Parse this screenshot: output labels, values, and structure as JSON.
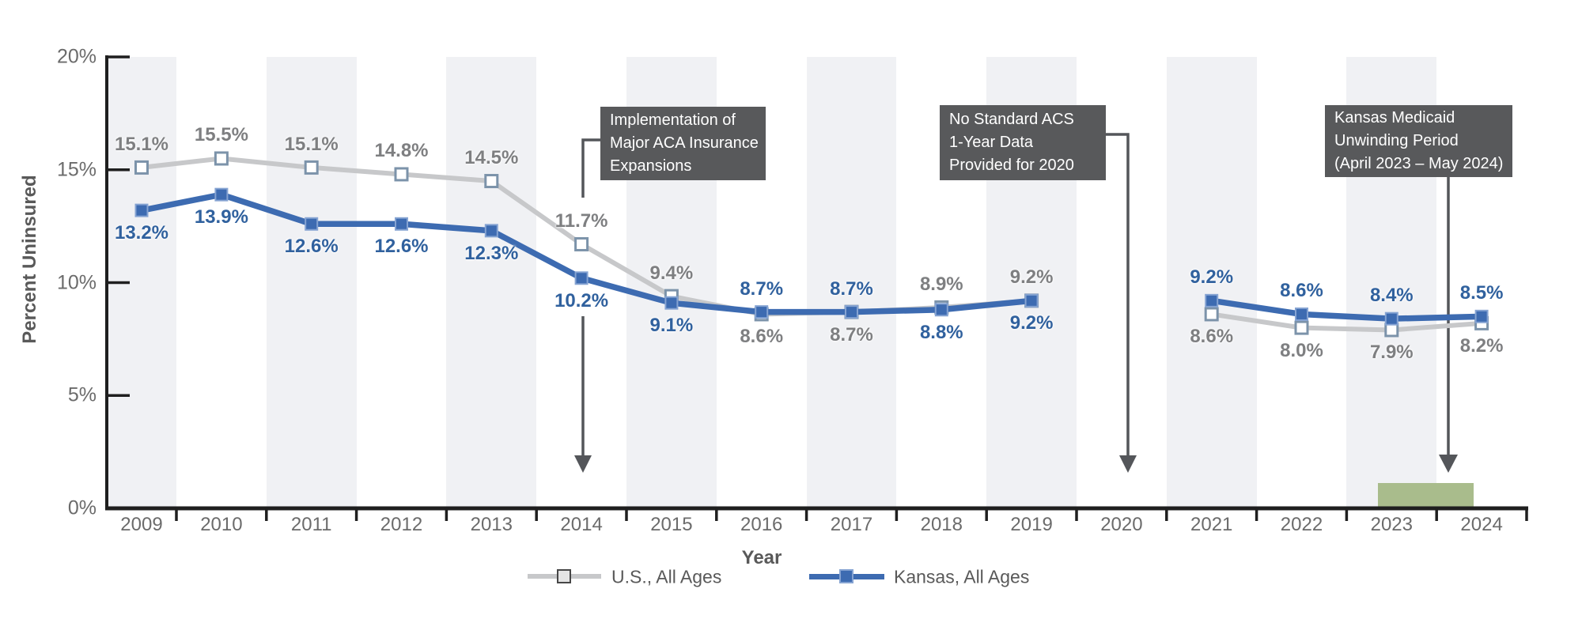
{
  "chart_data": {
    "type": "line",
    "title": "",
    "xlabel": "Year",
    "ylabel": "Percent Uninsured",
    "ylim": [
      0,
      20
    ],
    "ytick_values": [
      0,
      5,
      10,
      15,
      20
    ],
    "ytick_labels": [
      "0%",
      "5%",
      "10%",
      "15%",
      "20%"
    ],
    "grid": "off",
    "legend_position": "bottom",
    "categories": [
      "2009",
      "2010",
      "2011",
      "2012",
      "2013",
      "2014",
      "2015",
      "2016",
      "2017",
      "2018",
      "2019",
      "2020",
      "2021",
      "2022",
      "2023",
      "2024"
    ],
    "series": [
      {
        "name": "U.S., All Ages",
        "key": "us",
        "values": [
          15.1,
          15.5,
          15.1,
          14.8,
          14.5,
          11.7,
          9.4,
          8.6,
          8.7,
          8.9,
          9.2,
          null,
          8.6,
          8.0,
          7.9,
          8.2
        ],
        "labels": [
          "15.1%",
          "15.5%",
          "15.1%",
          "14.8%",
          "14.5%",
          "11.7%",
          "9.4%",
          "8.6%",
          "8.7%",
          "8.9%",
          "9.2%",
          null,
          "8.6%",
          "8.0%",
          "7.9%",
          "8.2%"
        ],
        "label_side": [
          "above",
          "above",
          "above",
          "above",
          "above",
          "above",
          "above",
          "below",
          "below",
          "above",
          "above",
          null,
          "below",
          "below",
          "below",
          "below"
        ]
      },
      {
        "name": "Kansas, All Ages",
        "key": "kansas",
        "values": [
          13.2,
          13.9,
          12.6,
          12.6,
          12.3,
          10.2,
          9.1,
          8.7,
          8.7,
          8.8,
          9.2,
          null,
          9.2,
          8.6,
          8.4,
          8.5
        ],
        "labels": [
          "13.2%",
          "13.9%",
          "12.6%",
          "12.6%",
          "12.3%",
          "10.2%",
          "9.1%",
          "8.7%",
          "8.7%",
          "8.8%",
          "9.2%",
          null,
          "9.2%",
          "8.6%",
          "8.4%",
          "8.5%"
        ],
        "label_side": [
          "below",
          "below",
          "below",
          "below",
          "below",
          "below",
          "below",
          "above",
          "above",
          "below",
          "below",
          null,
          "above",
          "above",
          "above",
          "above"
        ]
      }
    ],
    "shaded_years": [
      "2009",
      "2011",
      "2013",
      "2015",
      "2017",
      "2019",
      "2021",
      "2023"
    ],
    "missing_year": "2020"
  },
  "annotations": [
    {
      "id": "aca",
      "lines": [
        "Implementation of",
        "Major ACA Insurance",
        "Expansions"
      ]
    },
    {
      "id": "acs2020",
      "lines": [
        "No Standard ACS",
        "1-Year Data",
        "Provided for 2020"
      ]
    },
    {
      "id": "unwinding",
      "lines": [
        "Kansas Medicaid",
        "Unwinding Period",
        "(April 2023 – May 2024)"
      ]
    }
  ],
  "legend": {
    "items": [
      {
        "label": "U.S., All Ages",
        "key": "us"
      },
      {
        "label": "Kansas, All Ages",
        "key": "kansas"
      }
    ]
  },
  "axis": {
    "x_title": "Year",
    "y_title": "Percent Uninsured"
  },
  "colors": {
    "us_line": "#C7C8CA",
    "us_marker_fill": "#FFFFFF",
    "us_marker_border": "#7C93AA",
    "us_label": "#7E7F81",
    "kansas_line": "#3D6BB1",
    "kansas_marker_border": "#85A3D2",
    "kansas_label": "#30619E",
    "annotation_bg": "#58595B",
    "annotation_text": "#FFFFFF",
    "band": "#F0F1F4",
    "green_band": "#A9BC8C",
    "axis": "#1F1F1F",
    "arrow": "#54565A",
    "tick_text": "#6B6B6B",
    "dark_text": "#595959",
    "legend_us_square_fill": "#E4E4E4",
    "legend_us_square_border": "#474747"
  }
}
